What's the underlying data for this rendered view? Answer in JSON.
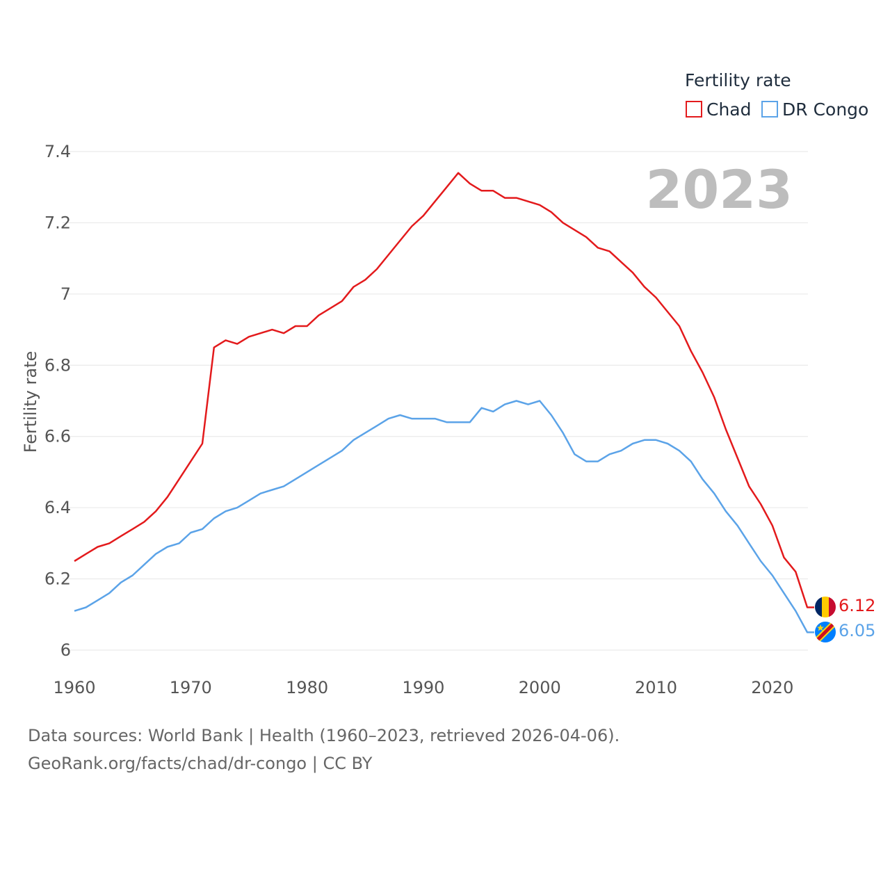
{
  "chart_data": {
    "type": "line",
    "title": "",
    "year_label": "2023",
    "xlabel": "",
    "ylabel": "Fertility rate",
    "xlim": [
      1960,
      2023
    ],
    "ylim": [
      6,
      7.4
    ],
    "x_ticks": [
      1960,
      1970,
      1980,
      1990,
      2000,
      2010,
      2020
    ],
    "y_ticks": [
      6,
      6.2,
      6.4,
      6.6,
      6.8,
      7,
      7.2,
      7.4
    ],
    "y_tick_labels": [
      "6",
      "6.2",
      "6.4",
      "6.6",
      "6.8",
      "7",
      "7.2",
      "7.4"
    ],
    "legend": {
      "title": "Fertility rate",
      "placement": "top-right"
    },
    "x": [
      1960,
      1961,
      1962,
      1963,
      1964,
      1965,
      1966,
      1967,
      1968,
      1969,
      1970,
      1971,
      1972,
      1973,
      1974,
      1975,
      1976,
      1977,
      1978,
      1979,
      1980,
      1981,
      1982,
      1983,
      1984,
      1985,
      1986,
      1987,
      1988,
      1989,
      1990,
      1991,
      1992,
      1993,
      1994,
      1995,
      1996,
      1997,
      1998,
      1999,
      2000,
      2001,
      2002,
      2003,
      2004,
      2005,
      2006,
      2007,
      2008,
      2009,
      2010,
      2011,
      2012,
      2013,
      2014,
      2015,
      2016,
      2017,
      2018,
      2019,
      2020,
      2021,
      2022,
      2023
    ],
    "series": [
      {
        "name": "Chad",
        "color": "#e31a1c",
        "end_value_label": "6.12",
        "flag": "chad-flag",
        "values": [
          6.25,
          6.27,
          6.29,
          6.3,
          6.32,
          6.34,
          6.36,
          6.39,
          6.43,
          6.48,
          6.53,
          6.58,
          6.85,
          6.87,
          6.86,
          6.88,
          6.89,
          6.9,
          6.89,
          6.91,
          6.91,
          6.94,
          6.96,
          6.98,
          7.02,
          7.04,
          7.07,
          7.11,
          7.15,
          7.19,
          7.22,
          7.26,
          7.3,
          7.34,
          7.31,
          7.29,
          7.29,
          7.27,
          7.27,
          7.26,
          7.25,
          7.23,
          7.2,
          7.18,
          7.16,
          7.13,
          7.12,
          7.09,
          7.06,
          7.02,
          6.99,
          6.95,
          6.91,
          6.84,
          6.78,
          6.71,
          6.62,
          6.54,
          6.46,
          6.41,
          6.35,
          6.26,
          6.22,
          6.12
        ]
      },
      {
        "name": "DR Congo",
        "color": "#5ba3e8",
        "end_value_label": "6.05",
        "flag": "dr-congo-flag",
        "values": [
          6.11,
          6.12,
          6.14,
          6.16,
          6.19,
          6.21,
          6.24,
          6.27,
          6.29,
          6.3,
          6.33,
          6.34,
          6.37,
          6.39,
          6.4,
          6.42,
          6.44,
          6.45,
          6.46,
          6.48,
          6.5,
          6.52,
          6.54,
          6.56,
          6.59,
          6.61,
          6.63,
          6.65,
          6.66,
          6.65,
          6.65,
          6.65,
          6.64,
          6.64,
          6.64,
          6.68,
          6.67,
          6.69,
          6.7,
          6.69,
          6.7,
          6.66,
          6.61,
          6.55,
          6.53,
          6.53,
          6.55,
          6.56,
          6.58,
          6.59,
          6.59,
          6.58,
          6.56,
          6.53,
          6.48,
          6.44,
          6.39,
          6.35,
          6.3,
          6.25,
          6.21,
          6.16,
          6.11,
          6.05
        ]
      }
    ]
  },
  "footer": {
    "source": "Data sources: World Bank | Health (1960–2023, retrieved 2026-04-06).",
    "url": "GeoRank.org/facts/chad/dr-congo | CC BY"
  }
}
